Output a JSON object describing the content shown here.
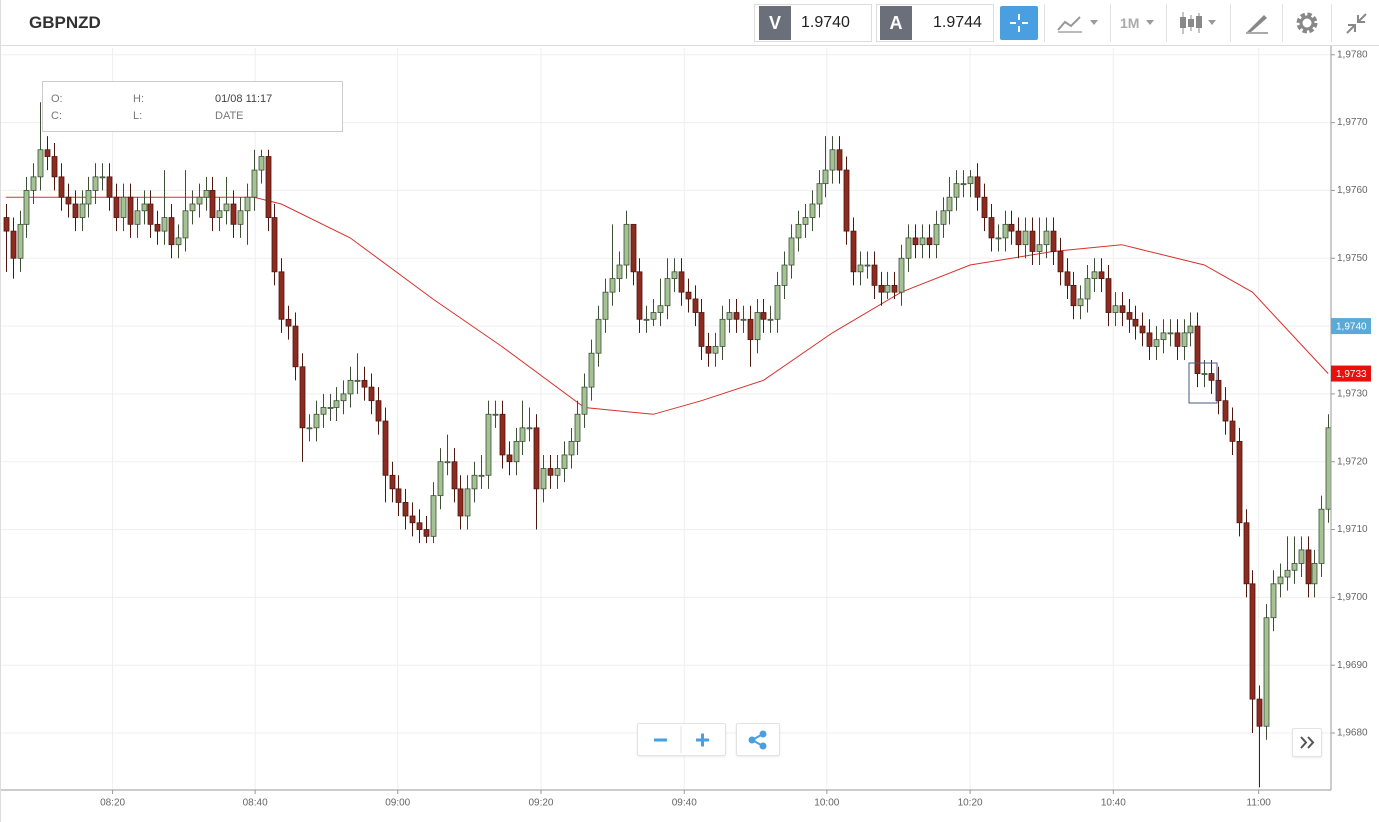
{
  "header": {
    "symbol": "GBPNZD",
    "bid_key": "V",
    "bid": "1.9740",
    "ask_key": "A",
    "ask": "1.9744",
    "interval": "1M"
  },
  "ohlc_box": {
    "open_label": "O:",
    "high_label": "H:",
    "date_value": "01/08 11:17",
    "close_label": "C:",
    "low_label": "L:",
    "date_label": "DATE"
  },
  "chart_data": {
    "type": "candlestick",
    "up_color": "#a4c294",
    "down_color": "#8d2b20",
    "xlim": [
      -0.7,
      192.4
    ],
    "xticks": [
      {
        "value": 15.5,
        "label": "08:20"
      },
      {
        "value": 36.2,
        "label": "08:40"
      },
      {
        "value": 56.9,
        "label": "09:00"
      },
      {
        "value": 77.7,
        "label": "09:20"
      },
      {
        "value": 98.5,
        "label": "09:40"
      },
      {
        "value": 119.2,
        "label": "10:00"
      },
      {
        "value": 140,
        "label": "10:20"
      },
      {
        "value": 160.8,
        "label": "10:40"
      },
      {
        "value": 181.9,
        "label": "11:00"
      }
    ],
    "ylim": [
      1.96716,
      1.9781
    ],
    "yticks": [
      {
        "value": 1.968,
        "label": "1,9680"
      },
      {
        "value": 1.969,
        "label": "1,9690"
      },
      {
        "value": 1.97,
        "label": "1,9700"
      },
      {
        "value": 1.971,
        "label": "1,9710"
      },
      {
        "value": 1.972,
        "label": "1,9720"
      },
      {
        "value": 1.973,
        "label": "1,9730"
      },
      {
        "value": 1.974,
        "label": "1,9740"
      },
      {
        "value": 1.975,
        "label": "1,9750"
      },
      {
        "value": 1.976,
        "label": "1,9760"
      },
      {
        "value": 1.977,
        "label": "1,9770"
      },
      {
        "value": 1.978,
        "label": "1,9780"
      }
    ],
    "grid": true,
    "price_labels": [
      {
        "value": 1.974,
        "label": "1,9740",
        "color": "#5aaad8"
      },
      {
        "value": 1.9733,
        "label": "1,9733",
        "color": "#e8100c"
      }
    ],
    "moving_average": {
      "color": "#d9302b",
      "x": [
        0,
        36,
        40,
        50,
        62,
        72,
        84,
        94,
        101,
        110,
        120,
        130,
        140,
        152,
        162,
        174,
        181,
        192
      ],
      "values": [
        1.9759,
        1.9759,
        1.9758,
        1.9753,
        1.9744,
        1.9737,
        1.9728,
        1.9727,
        1.9729,
        1.9732,
        1.9739,
        1.9745,
        1.9749,
        1.9751,
        1.9752,
        1.9749,
        1.9745,
        1.9733
      ]
    },
    "open": [
      1.9756,
      1.9754,
      1.975,
      1.9755,
      1.976,
      1.9762,
      1.9766,
      1.9765,
      1.9762,
      1.9759,
      1.9758,
      1.9756,
      1.9758,
      1.976,
      1.9762,
      1.9762,
      1.9759,
      1.9756,
      1.9759,
      1.9755,
      1.9757,
      1.9758,
      1.9755,
      1.9754,
      1.9756,
      1.9752,
      1.9753,
      1.9757,
      1.9758,
      1.9759,
      1.976,
      1.9756,
      1.9757,
      1.9758,
      1.9755,
      1.9757,
      1.9759,
      1.9763,
      1.9765,
      1.9756,
      1.9748,
      1.9741,
      1.974,
      1.9734,
      1.9725,
      1.9725,
      1.9727,
      1.9728,
      1.9728,
      1.9729,
      1.973,
      1.9732,
      1.9732,
      1.9731,
      1.9729,
      1.9726,
      1.9718,
      1.9716,
      1.9714,
      1.9712,
      1.9711,
      1.971,
      1.9709,
      1.9715,
      1.972,
      1.972,
      1.9716,
      1.9712,
      1.9716,
      1.9718,
      1.9718,
      1.9727,
      1.9727,
      1.9721,
      1.972,
      1.9723,
      1.9725,
      1.9725,
      1.9716,
      1.9719,
      1.9718,
      1.9719,
      1.9721,
      1.9723,
      1.9727,
      1.9731,
      1.9736,
      1.9741,
      1.9745,
      1.9747,
      1.9749,
      1.9755,
      1.9748,
      1.9741,
      1.9741,
      1.9742,
      1.9743,
      1.9747,
      1.9748,
      1.9745,
      1.9744,
      1.9742,
      1.9737,
      1.9736,
      1.9737,
      1.9741,
      1.9742,
      1.9741,
      1.9741,
      1.9738,
      1.9742,
      1.9741,
      1.9741,
      1.9746,
      1.9749,
      1.9753,
      1.9755,
      1.9756,
      1.9758,
      1.9761,
      1.9763,
      1.9766,
      1.9763,
      1.9754,
      1.9748,
      1.9749,
      1.9749,
      1.9746,
      1.9745,
      1.9746,
      1.9745,
      1.975,
      1.9753,
      1.9752,
      1.9753,
      1.9752,
      1.9755,
      1.9757,
      1.9759,
      1.9761,
      1.9761,
      1.9762,
      1.9759,
      1.9756,
      1.9753,
      1.9753,
      1.9755,
      1.9754,
      1.9752,
      1.9754,
      1.9751,
      1.9752,
      1.9754,
      1.9751,
      1.9748,
      1.9746,
      1.9743,
      1.9744,
      1.9747,
      1.9748,
      1.9747,
      1.9742,
      1.9743,
      1.9742,
      1.9741,
      1.974,
      1.9739,
      1.9737,
      1.9738,
      1.9739,
      1.9739,
      1.9737,
      1.9739,
      1.974,
      1.9733,
      1.9733,
      1.9732,
      1.9729,
      1.9726,
      1.9723,
      1.9711,
      1.9702,
      1.9685,
      1.9681,
      1.9697,
      1.9702,
      1.9703,
      1.9704,
      1.9705,
      1.9707,
      1.9702,
      1.9705,
      1.9713
    ],
    "high": [
      1.9758,
      1.9756,
      1.9757,
      1.9762,
      1.9764,
      1.9773,
      1.9768,
      1.9767,
      1.9764,
      1.9761,
      1.976,
      1.976,
      1.9762,
      1.9764,
      1.9764,
      1.9764,
      1.9761,
      1.9761,
      1.9761,
      1.9759,
      1.976,
      1.976,
      1.9757,
      1.9763,
      1.9758,
      1.9755,
      1.9763,
      1.976,
      1.9761,
      1.9762,
      1.9762,
      1.9759,
      1.9762,
      1.976,
      1.9759,
      1.9761,
      1.9766,
      1.9766,
      1.9766,
      1.9758,
      1.975,
      1.9743,
      1.9742,
      1.9736,
      1.9727,
      1.9729,
      1.973,
      1.973,
      1.9731,
      1.9732,
      1.9734,
      1.9736,
      1.9734,
      1.9733,
      1.9731,
      1.9728,
      1.972,
      1.9718,
      1.9716,
      1.9714,
      1.9713,
      1.9712,
      1.9717,
      1.9722,
      1.9724,
      1.9722,
      1.9718,
      1.9718,
      1.972,
      1.9721,
      1.9729,
      1.9729,
      1.9729,
      1.9723,
      1.9725,
      1.9729,
      1.9728,
      1.9727,
      1.9721,
      1.9721,
      1.9721,
      1.9723,
      1.9725,
      1.9729,
      1.9733,
      1.9738,
      1.9743,
      1.9747,
      1.9755,
      1.9751,
      1.9757,
      1.9755,
      1.975,
      1.9743,
      1.9744,
      1.9747,
      1.975,
      1.975,
      1.975,
      1.9747,
      1.9746,
      1.9744,
      1.9739,
      1.9739,
      1.9743,
      1.9744,
      1.9744,
      1.9743,
      1.9743,
      1.9744,
      1.9744,
      1.9743,
      1.9748,
      1.9751,
      1.9755,
      1.9757,
      1.9758,
      1.976,
      1.9763,
      1.9768,
      1.9768,
      1.9768,
      1.9765,
      1.9756,
      1.9751,
      1.9751,
      1.9751,
      1.9748,
      1.9748,
      1.9748,
      1.9752,
      1.9755,
      1.9755,
      1.9755,
      1.9755,
      1.9757,
      1.9759,
      1.9762,
      1.9763,
      1.9763,
      1.9763,
      1.9764,
      1.9761,
      1.9758,
      1.9755,
      1.9757,
      1.9757,
      1.9756,
      1.9756,
      1.9756,
      1.9756,
      1.9756,
      1.9756,
      1.9753,
      1.975,
      1.9748,
      1.9746,
      1.9749,
      1.975,
      1.975,
      1.9749,
      1.9745,
      1.9745,
      1.9744,
      1.9743,
      1.9742,
      1.9741,
      1.974,
      1.9741,
      1.9741,
      1.9741,
      1.9741,
      1.9742,
      1.9742,
      1.9735,
      1.9735,
      1.9734,
      1.9731,
      1.9728,
      1.9725,
      1.9713,
      1.9704,
      1.9687,
      1.9699,
      1.9704,
      1.9705,
      1.9709,
      1.9709,
      1.9709,
      1.9709,
      1.9707,
      1.9715,
      1.9727
    ],
    "low": [
      1.9748,
      1.9747,
      1.9748,
      1.9753,
      1.9758,
      1.976,
      1.9763,
      1.976,
      1.9757,
      1.9756,
      1.9754,
      1.9754,
      1.9756,
      1.9758,
      1.976,
      1.9757,
      1.9754,
      1.9754,
      1.9753,
      1.9753,
      1.9755,
      1.9753,
      1.9752,
      1.9752,
      1.975,
      1.975,
      1.9751,
      1.9755,
      1.9756,
      1.9757,
      1.9754,
      1.9754,
      1.9755,
      1.9753,
      1.9753,
      1.9752,
      1.9757,
      1.9761,
      1.9754,
      1.9746,
      1.9739,
      1.9738,
      1.9732,
      1.972,
      1.9723,
      1.9723,
      1.9725,
      1.9726,
      1.9726,
      1.9727,
      1.9728,
      1.973,
      1.9729,
      1.9727,
      1.9724,
      1.9714,
      1.9714,
      1.9712,
      1.971,
      1.9709,
      1.9708,
      1.9708,
      1.9708,
      1.9713,
      1.9718,
      1.9714,
      1.971,
      1.971,
      1.9714,
      1.9716,
      1.9716,
      1.9725,
      1.9719,
      1.9718,
      1.9718,
      1.9721,
      1.9723,
      1.971,
      1.9714,
      1.9716,
      1.9716,
      1.9717,
      1.9719,
      1.9721,
      1.9725,
      1.9729,
      1.9734,
      1.9739,
      1.9743,
      1.9745,
      1.9747,
      1.9746,
      1.9739,
      1.9739,
      1.974,
      1.974,
      1.9741,
      1.9745,
      1.9743,
      1.9742,
      1.974,
      1.9735,
      1.9734,
      1.9734,
      1.9735,
      1.9739,
      1.9739,
      1.9739,
      1.9734,
      1.9736,
      1.9739,
      1.9739,
      1.9739,
      1.9744,
      1.9747,
      1.9751,
      1.9753,
      1.9754,
      1.9756,
      1.9759,
      1.9761,
      1.9761,
      1.9752,
      1.9746,
      1.9746,
      1.9747,
      1.9744,
      1.9743,
      1.9744,
      1.9744,
      1.9743,
      1.9748,
      1.975,
      1.975,
      1.975,
      1.975,
      1.9753,
      1.9755,
      1.9757,
      1.9759,
      1.9759,
      1.9757,
      1.9754,
      1.9751,
      1.9751,
      1.9751,
      1.9752,
      1.975,
      1.975,
      1.9749,
      1.9749,
      1.975,
      1.9749,
      1.9746,
      1.9744,
      1.9741,
      1.9741,
      1.9742,
      1.9745,
      1.9745,
      1.974,
      1.974,
      1.974,
      1.9739,
      1.9738,
      1.9737,
      1.9735,
      1.9735,
      1.9736,
      1.9737,
      1.9735,
      1.9735,
      1.9737,
      1.9731,
      1.9731,
      1.973,
      1.9727,
      1.9724,
      1.9721,
      1.9709,
      1.97,
      1.968,
      1.9672,
      1.9679,
      1.9695,
      1.97,
      1.9701,
      1.9702,
      1.9703,
      1.97,
      1.97,
      1.9703,
      1.9711
    ],
    "close": [
      1.9754,
      1.975,
      1.9755,
      1.976,
      1.9762,
      1.9766,
      1.9765,
      1.9762,
      1.9759,
      1.9758,
      1.9756,
      1.9758,
      1.976,
      1.9762,
      1.9762,
      1.9759,
      1.9756,
      1.9759,
      1.9755,
      1.9757,
      1.9758,
      1.9755,
      1.9754,
      1.9756,
      1.9752,
      1.9753,
      1.9757,
      1.9758,
      1.9759,
      1.976,
      1.9756,
      1.9757,
      1.9758,
      1.9755,
      1.9757,
      1.9759,
      1.9763,
      1.9765,
      1.9756,
      1.9748,
      1.9741,
      1.974,
      1.9734,
      1.9725,
      1.9725,
      1.9727,
      1.9728,
      1.9728,
      1.9729,
      1.973,
      1.9732,
      1.9732,
      1.9731,
      1.9729,
      1.9726,
      1.9718,
      1.9716,
      1.9714,
      1.9712,
      1.9711,
      1.971,
      1.9709,
      1.9715,
      1.972,
      1.972,
      1.9716,
      1.9712,
      1.9716,
      1.9718,
      1.9718,
      1.9727,
      1.9727,
      1.9721,
      1.972,
      1.9723,
      1.9725,
      1.9725,
      1.9716,
      1.9719,
      1.9718,
      1.9719,
      1.9721,
      1.9723,
      1.9727,
      1.9731,
      1.9736,
      1.9741,
      1.9745,
      1.9747,
      1.9749,
      1.9755,
      1.9748,
      1.9741,
      1.9741,
      1.9742,
      1.9743,
      1.9747,
      1.9748,
      1.9745,
      1.9744,
      1.9742,
      1.9737,
      1.9736,
      1.9737,
      1.9741,
      1.9742,
      1.9741,
      1.9741,
      1.9738,
      1.9742,
      1.9741,
      1.9741,
      1.9746,
      1.9749,
      1.9753,
      1.9755,
      1.9756,
      1.9758,
      1.9761,
      1.9763,
      1.9766,
      1.9763,
      1.9754,
      1.9748,
      1.9749,
      1.9749,
      1.9746,
      1.9745,
      1.9746,
      1.9745,
      1.975,
      1.9753,
      1.9752,
      1.9753,
      1.9752,
      1.9755,
      1.9757,
      1.9759,
      1.9761,
      1.9761,
      1.9762,
      1.9759,
      1.9756,
      1.9753,
      1.9753,
      1.9755,
      1.9754,
      1.9752,
      1.9754,
      1.9751,
      1.9752,
      1.9754,
      1.9751,
      1.9748,
      1.9746,
      1.9743,
      1.9744,
      1.9747,
      1.9748,
      1.9747,
      1.9742,
      1.9743,
      1.9742,
      1.9741,
      1.974,
      1.9739,
      1.9737,
      1.9738,
      1.9739,
      1.9739,
      1.9737,
      1.9739,
      1.974,
      1.9733,
      1.9733,
      1.9732,
      1.9729,
      1.9726,
      1.9723,
      1.9711,
      1.9702,
      1.9685,
      1.9681,
      1.9697,
      1.9702,
      1.9703,
      1.9704,
      1.9705,
      1.9707,
      1.9702,
      1.9705,
      1.9713,
      1.9725
    ]
  }
}
